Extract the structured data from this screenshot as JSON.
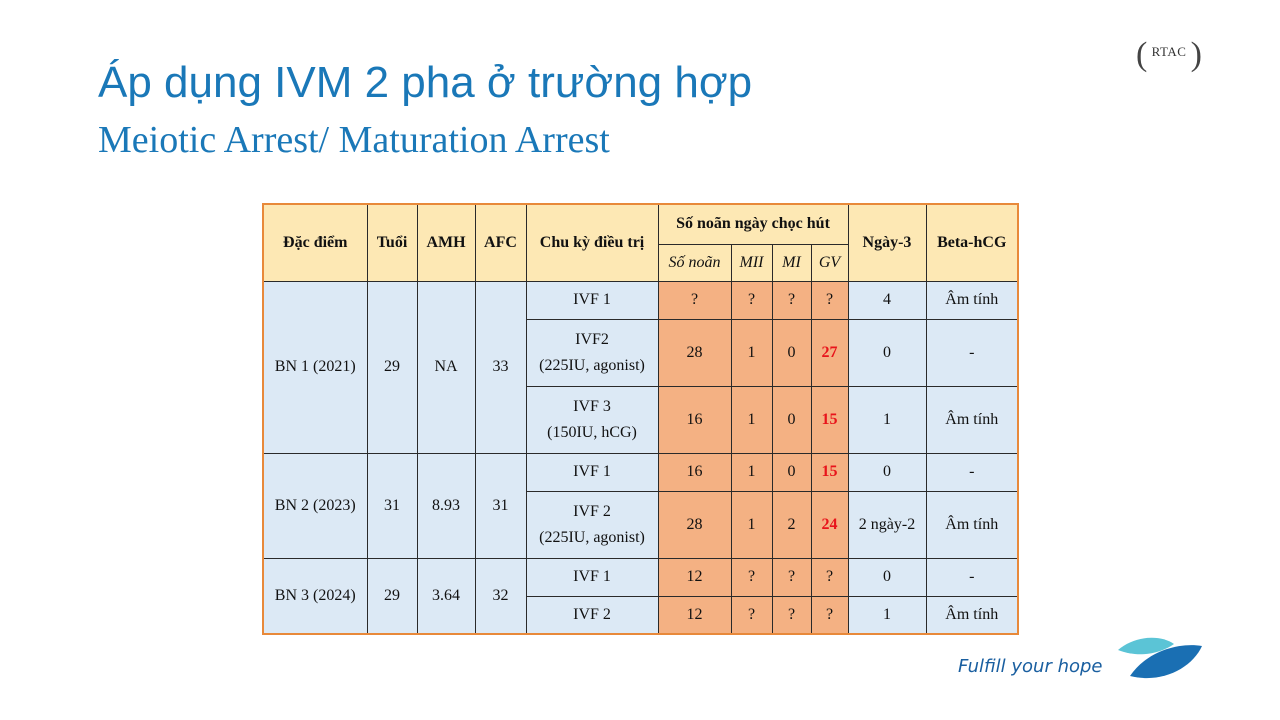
{
  "title": "Áp dụng IVM 2 pha ở trường hợp",
  "subtitle": "Meiotic Arrest/ Maturation Arrest",
  "logo": {
    "text": "RTAC"
  },
  "table": {
    "headers": {
      "dac_diem": "Đặc điểm",
      "tuoi": "Tuổi",
      "amh": "AMH",
      "afc": "AFC",
      "chu_ky": "Chu kỳ điều trị",
      "so_noan_group": "Số noãn ngày chọc hút",
      "so_noan": "Số noãn",
      "mii": "MII",
      "mi": "MI",
      "gv": "GV",
      "ngay3": "Ngày-3",
      "beta": "Beta-hCG"
    },
    "patients": [
      {
        "name": "BN 1 (2021)",
        "age": "29",
        "amh": "NA",
        "afc": "33",
        "cycles": [
          {
            "cycle": "IVF 1",
            "cycle2": "",
            "oocytes": "?",
            "mii": "?",
            "mi": "?",
            "gv": "?",
            "day3": "4",
            "beta": "Âm tính"
          },
          {
            "cycle": "IVF2",
            "cycle2": "(225IU, agonist)",
            "oocytes": "28",
            "mii": "1",
            "mi": "0",
            "gv": "27",
            "day3": "0",
            "beta": "-"
          },
          {
            "cycle": "IVF 3",
            "cycle2": "(150IU, hCG)",
            "oocytes": "16",
            "mii": "1",
            "mi": "0",
            "gv": "15",
            "day3": "1",
            "beta": "Âm tính"
          }
        ]
      },
      {
        "name": "BN 2 (2023)",
        "age": "31",
        "amh": "8.93",
        "afc": "31",
        "cycles": [
          {
            "cycle": "IVF 1",
            "cycle2": "",
            "oocytes": "16",
            "mii": "1",
            "mi": "0",
            "gv": "15",
            "day3": "0",
            "beta": "-"
          },
          {
            "cycle": "IVF 2",
            "cycle2": "(225IU, agonist)",
            "oocytes": "28",
            "mii": "1",
            "mi": "2",
            "gv": "24",
            "day3": "2 ngày-2",
            "beta": "Âm tính"
          }
        ]
      },
      {
        "name": "BN 3 (2024)",
        "age": "29",
        "amh": "3.64",
        "afc": "32",
        "cycles": [
          {
            "cycle": "IVF 1",
            "cycle2": "",
            "oocytes": "12",
            "mii": "?",
            "mi": "?",
            "gv": "?",
            "day3": "0",
            "beta": "-"
          },
          {
            "cycle": "IVF 2",
            "cycle2": "",
            "oocytes": "12",
            "mii": "?",
            "mi": "?",
            "gv": "?",
            "day3": "1",
            "beta": "Âm tính"
          }
        ]
      }
    ]
  },
  "tagline": "Fulfill your hope",
  "colors": {
    "title": "#1a78b8",
    "header_bg": "#fde8b4",
    "cell_blue": "#dce9f5",
    "cell_orange": "#f4b183",
    "gv_red": "#e8141b",
    "table_border": "#e8893a"
  }
}
